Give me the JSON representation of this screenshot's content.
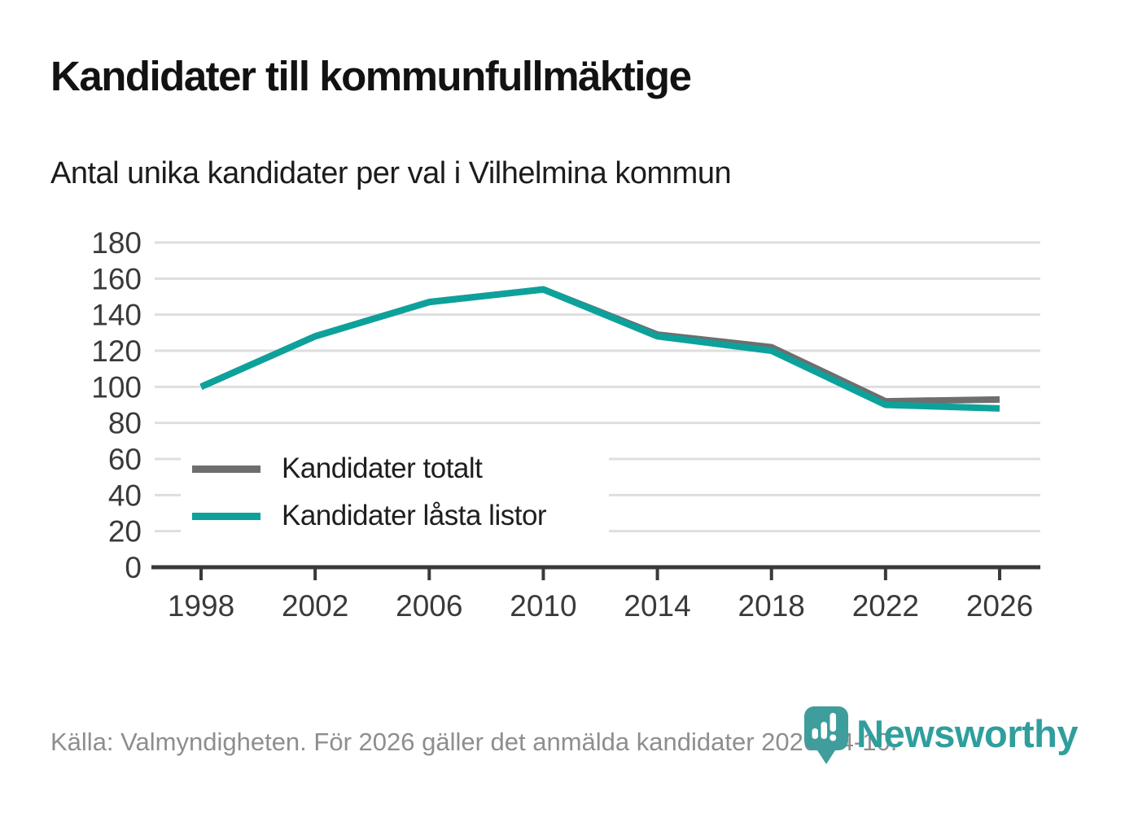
{
  "header": {
    "title": "Kandidater till kommunfullmäktige",
    "subtitle": "Antal unika kandidater per val i Vilhelmina kommun"
  },
  "chart_data": {
    "type": "line",
    "categories": [
      "1998",
      "2002",
      "2006",
      "2010",
      "2014",
      "2018",
      "2022",
      "2026"
    ],
    "series": [
      {
        "name": "Kandidater totalt",
        "color": "#6e6e6e",
        "values": [
          100,
          128,
          147,
          154,
          129,
          122,
          92,
          93
        ]
      },
      {
        "name": "Kandidater låsta listor",
        "color": "#0ca29b",
        "values": [
          100,
          128,
          147,
          154,
          128,
          120,
          90,
          88
        ]
      }
    ],
    "ylim": [
      0,
      180
    ],
    "ytick_step": 20,
    "grid": "horizontal-gridlines",
    "legend_position": "inside-bottom-left",
    "xlabel": "",
    "ylabel": ""
  },
  "styles": {
    "grid_color": "#dedede",
    "axis_color": "#3a3a3a",
    "tick_label_color": "#3a3a3a"
  },
  "footer": {
    "source": "Källa: Valmyndigheten. För 2026 gäller det anmälda kandidater 2026-04-10."
  },
  "branding": {
    "logo_text": "Newsworthy",
    "logo_text_color": "#2f9f9d",
    "logo_icon_color": "#3f9e9c"
  }
}
